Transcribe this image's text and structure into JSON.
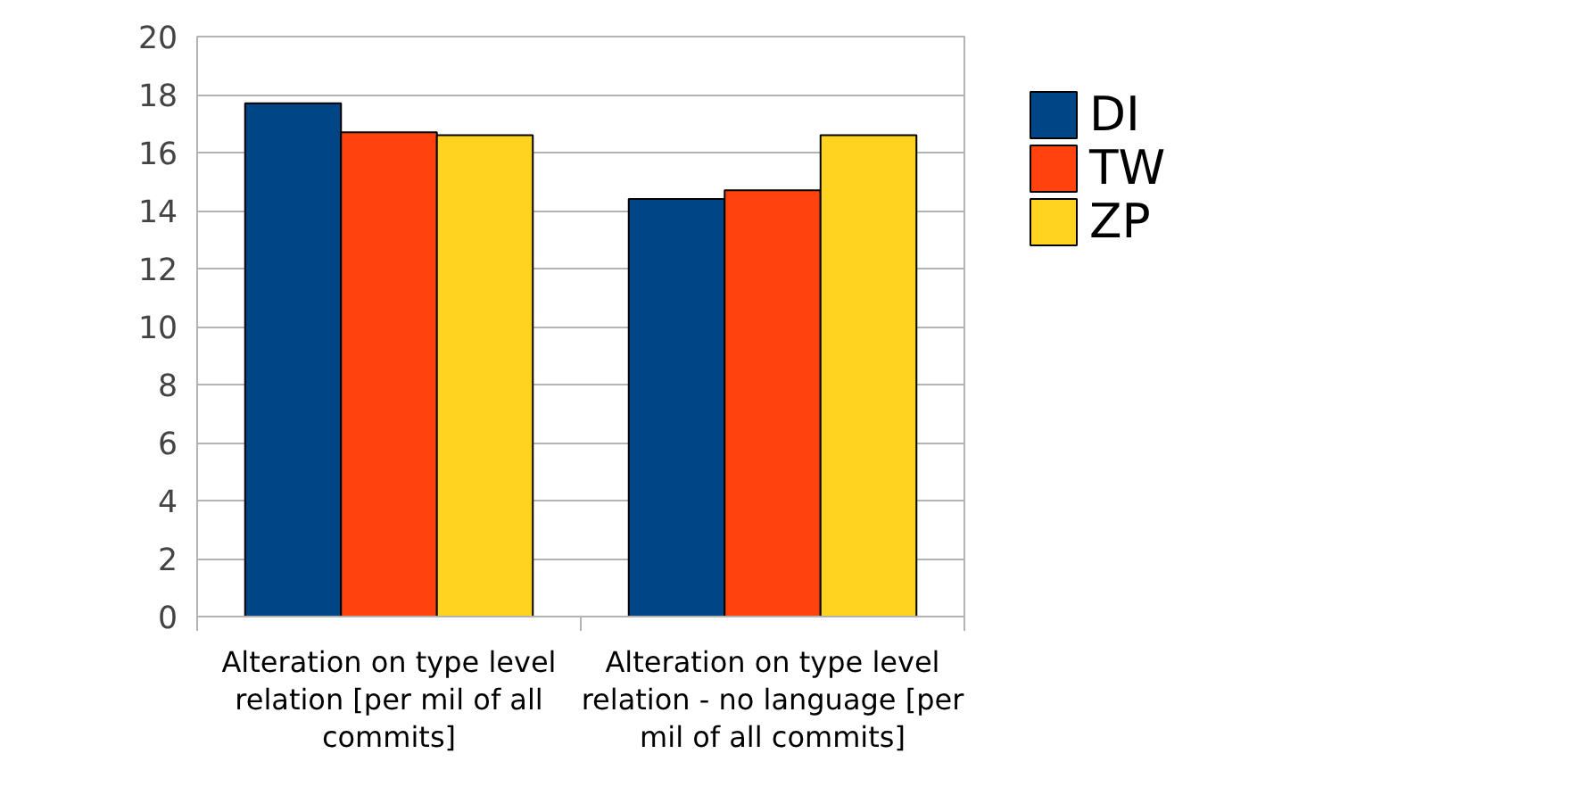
{
  "chart_data": {
    "type": "bar",
    "categories": [
      "Alteration on type level relation [per mil of all commits]",
      "Alteration on type level relation - no language [per mil of all commits]"
    ],
    "series": [
      {
        "name": "DI",
        "color": "#004586",
        "values": [
          17.7,
          14.4
        ]
      },
      {
        "name": "TW",
        "color": "#ff420e",
        "values": [
          16.7,
          14.7
        ]
      },
      {
        "name": "ZP",
        "color": "#ffd320",
        "values": [
          16.6,
          16.6
        ]
      }
    ],
    "ylim": [
      0,
      20
    ],
    "yticks": [
      0,
      2,
      4,
      6,
      8,
      10,
      12,
      14,
      16,
      18,
      20
    ],
    "grid": "y",
    "legend": "right"
  }
}
